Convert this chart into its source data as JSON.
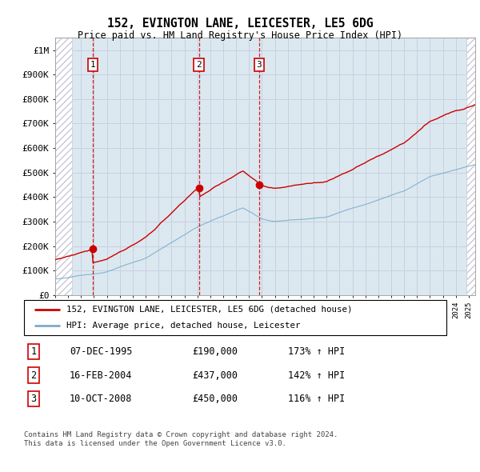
{
  "title": "152, EVINGTON LANE, LEICESTER, LE5 6DG",
  "subtitle": "Price paid vs. HM Land Registry's House Price Index (HPI)",
  "ylabel_ticks": [
    "£0",
    "£100K",
    "£200K",
    "£300K",
    "£400K",
    "£500K",
    "£600K",
    "£700K",
    "£800K",
    "£900K",
    "£1M"
  ],
  "ytick_values": [
    0,
    100000,
    200000,
    300000,
    400000,
    500000,
    600000,
    700000,
    800000,
    900000,
    1000000
  ],
  "ylim": [
    0,
    1050000
  ],
  "xlim_start": 1993.0,
  "xlim_end": 2025.5,
  "sale_dates": [
    1995.92,
    2004.12,
    2008.78
  ],
  "sale_prices": [
    190000,
    437000,
    450000
  ],
  "sale_labels": [
    "1",
    "2",
    "3"
  ],
  "legend_line1": "152, EVINGTON LANE, LEICESTER, LE5 6DG (detached house)",
  "legend_line2": "HPI: Average price, detached house, Leicester",
  "table_rows": [
    {
      "num": "1",
      "date": "07-DEC-1995",
      "price": "£190,000",
      "change": "173% ↑ HPI"
    },
    {
      "num": "2",
      "date": "16-FEB-2004",
      "price": "£437,000",
      "change": "142% ↑ HPI"
    },
    {
      "num": "3",
      "date": "10-OCT-2008",
      "price": "£450,000",
      "change": "116% ↑ HPI"
    }
  ],
  "footnote1": "Contains HM Land Registry data © Crown copyright and database right 2024.",
  "footnote2": "This data is licensed under the Open Government Licence v3.0.",
  "hpi_color": "#7aadcc",
  "sale_line_color": "#cc0000",
  "vline_color": "#cc0000",
  "grid_color": "#c8d0e0",
  "hatch_color": "#c8c8d8",
  "label_box_color": "#cc0000",
  "chart_bg": "#dce8f0"
}
